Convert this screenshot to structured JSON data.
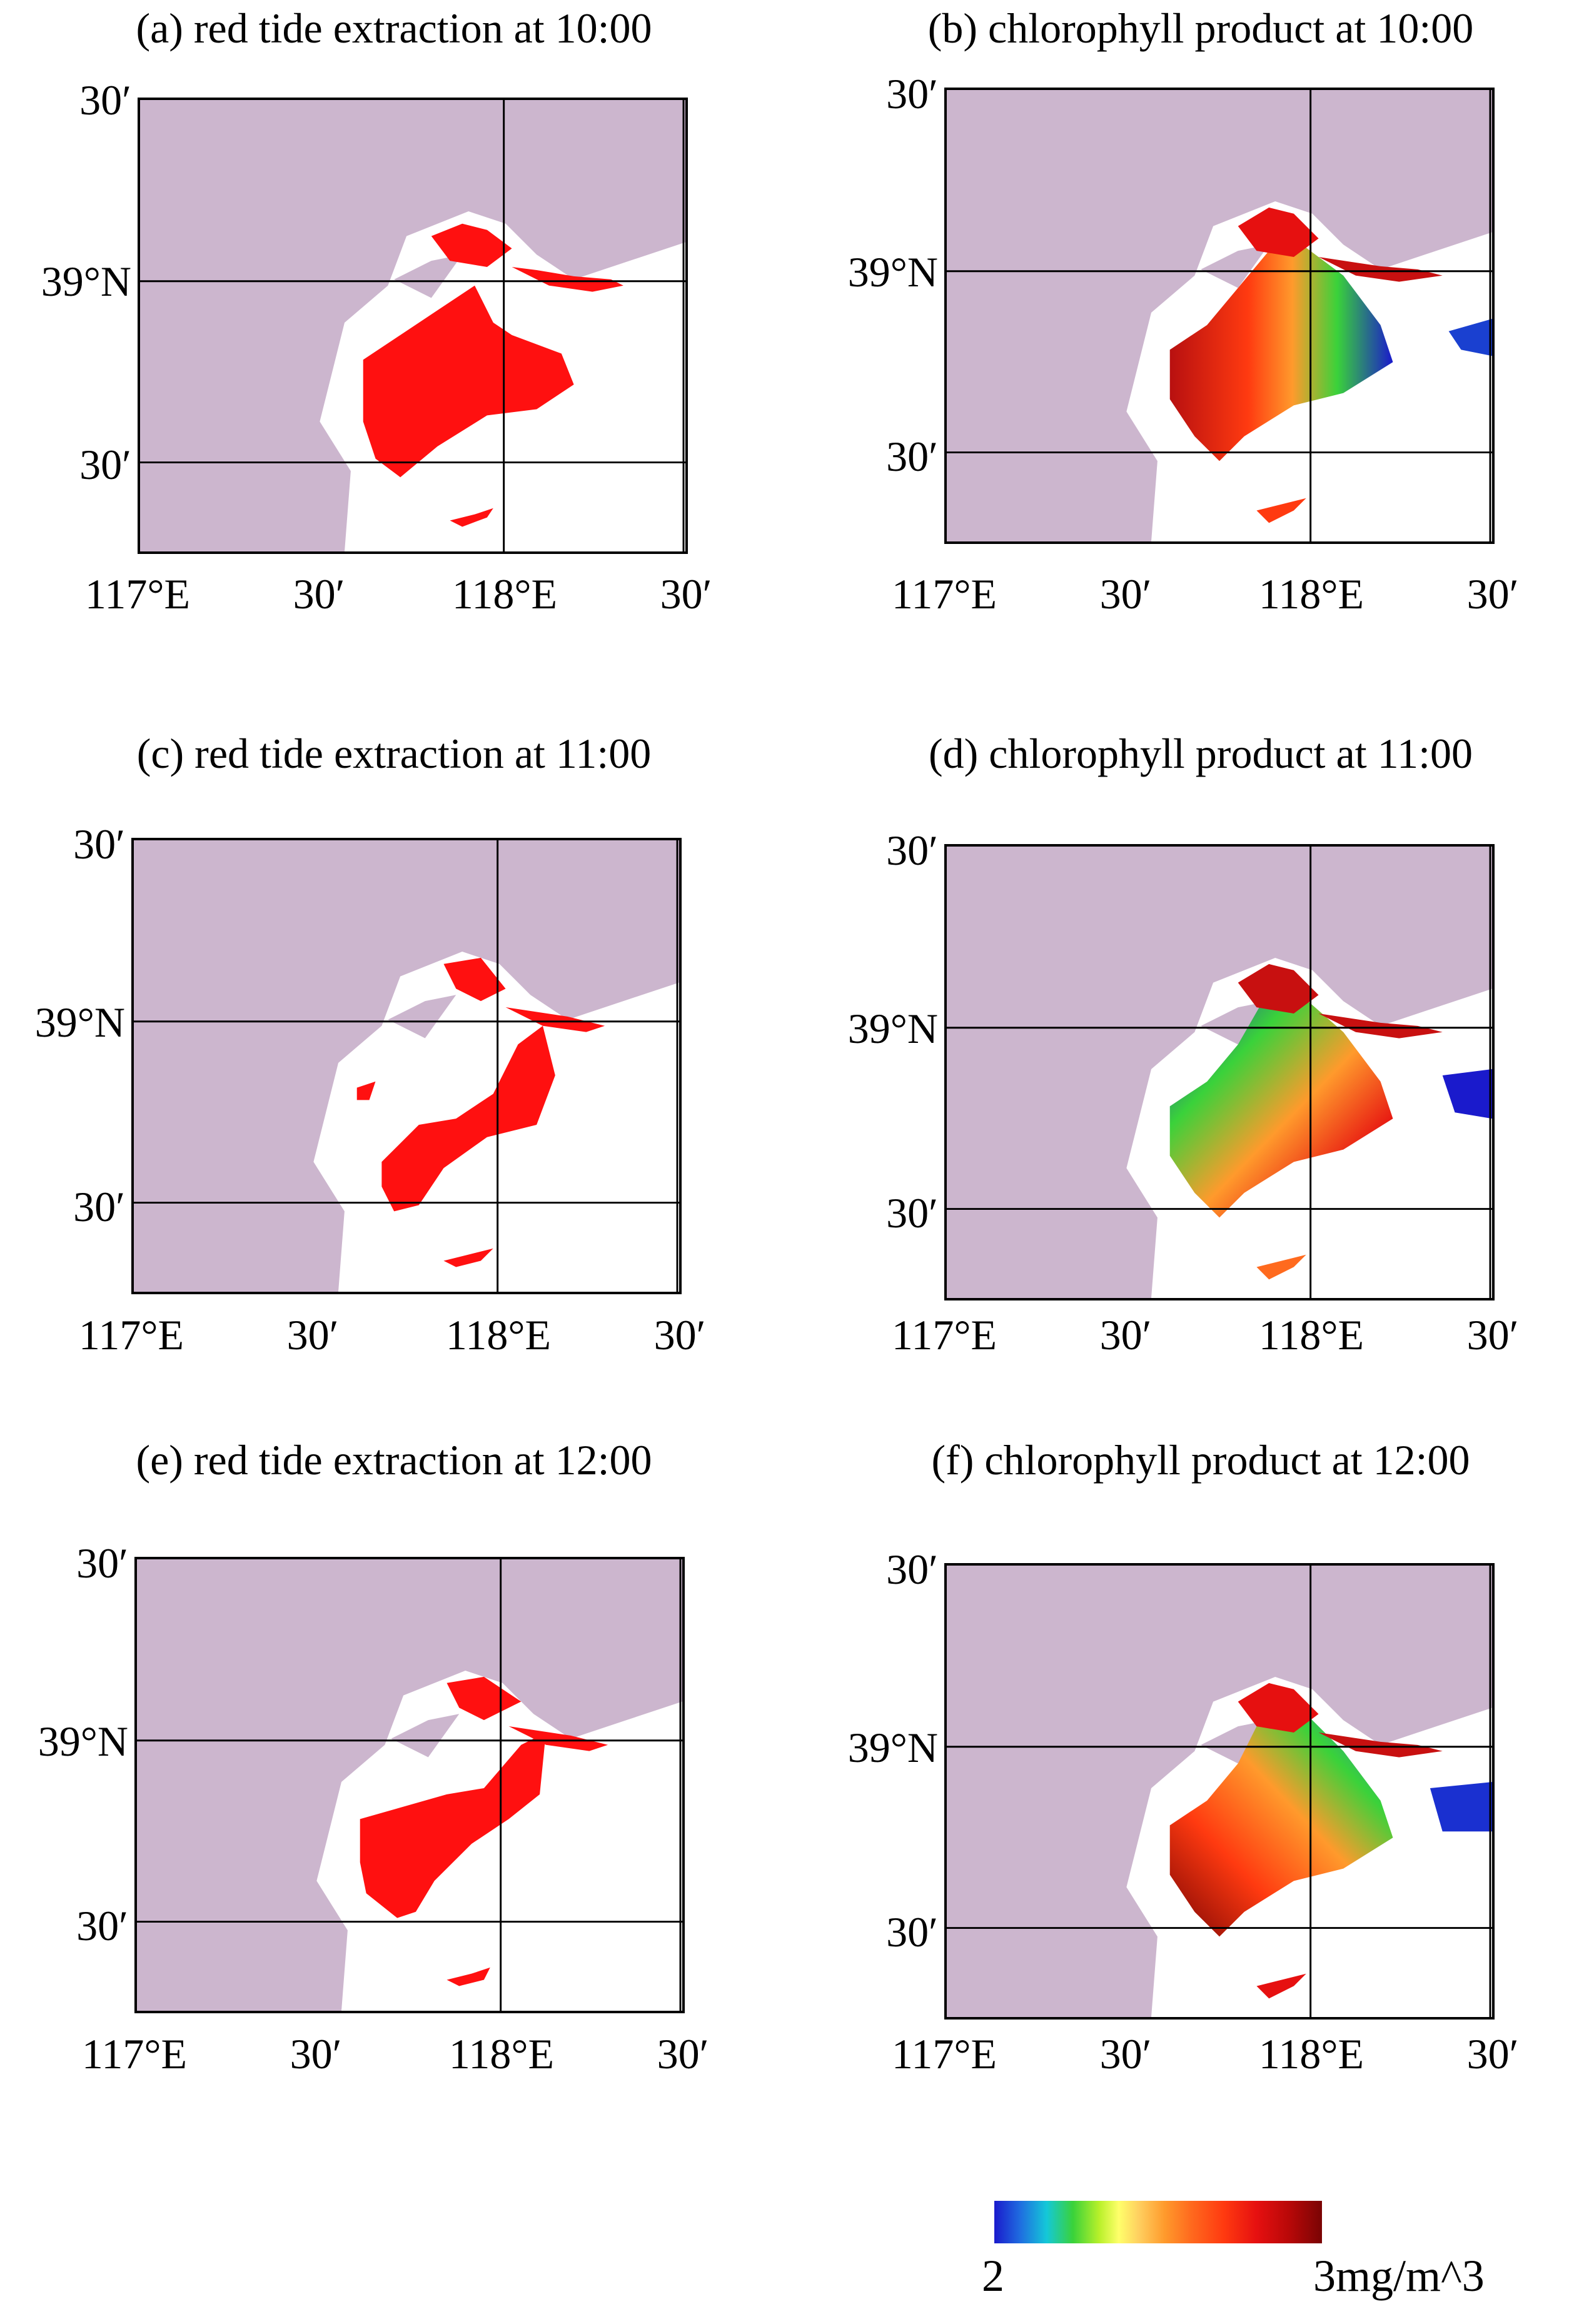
{
  "panels": [
    {
      "title": "(a) red tide extraction at 10:00",
      "kind": "red tide extraction",
      "time": "10:00"
    },
    {
      "title": "(b) chlorophyll product at 10:00",
      "kind": "chlorophyll product",
      "time": "10:00"
    },
    {
      "title": "(c) red tide extraction at 11:00",
      "kind": "red tide extraction",
      "time": "11:00"
    },
    {
      "title": "(d) chlorophyll product at 11:00",
      "kind": "chlorophyll product",
      "time": "11:00"
    },
    {
      "title": "(e) red tide extraction at 12:00",
      "kind": "red tide extraction",
      "time": "12:00"
    },
    {
      "title": "(f) chlorophyll product at 12:00",
      "kind": "chlorophyll product",
      "time": "12:00"
    }
  ],
  "axes": {
    "lat_labels": [
      "30′",
      "39°N",
      "30′"
    ],
    "lon_labels": [
      "117°E",
      "30′",
      "118°E",
      "30′"
    ]
  },
  "colorbar": {
    "min_label": "2",
    "max_label": "3mg/m^3",
    "min_value": 2,
    "max_value": 3,
    "unit": "mg/m^3"
  },
  "colors": {
    "land": "#ccb6ce",
    "sea": "#ffffff",
    "red_tide": "#ff1010",
    "grid": "#000000"
  }
}
